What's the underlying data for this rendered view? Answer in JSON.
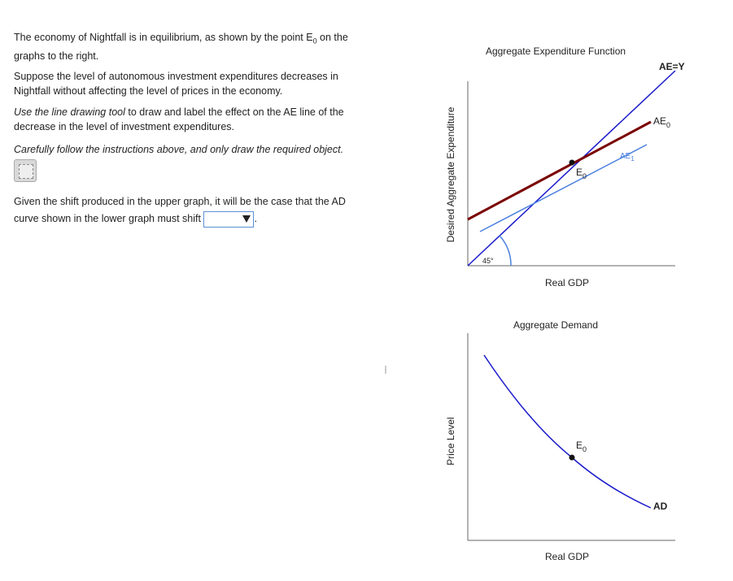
{
  "instructions": {
    "p1": {
      "before": "The economy of Nightfall is in equilibrium, as shown by the point E",
      "sub": "0",
      "after": " on the graphs to the right."
    },
    "p2": "Suppose the level of autonomous investment expenditures decreases in Nightfall without affecting the level of prices in the economy.",
    "p3": {
      "italic": "Use the line drawing tool",
      "rest": " to draw and label the effect on the AE line of the decrease in the level of investment expenditures."
    },
    "p4": "Carefully follow the instructions above, and only draw the required object.",
    "p5": {
      "before": "Given the shift produced in the upper graph, it will be the case that the AD curve shown in the lower graph must shift",
      "after": "."
    }
  },
  "ae_graph": {
    "title": "Aggregate Expenditure Function",
    "y_label": "Desired Aggregate Expenditure",
    "x_label": "Real GDP",
    "ae_y": "AE=Y",
    "ae0": {
      "text": "AE",
      "sub": "0"
    },
    "ae1": {
      "text": "AE",
      "sub": "1"
    },
    "e0": {
      "text": "E",
      "sub": "0"
    },
    "angle": "45°"
  },
  "ad_graph": {
    "title": "Aggregate Demand",
    "y_label": "Price Level",
    "x_label": "Real GDP",
    "e0": {
      "text": "E",
      "sub": "0"
    },
    "ad": "AD"
  }
}
